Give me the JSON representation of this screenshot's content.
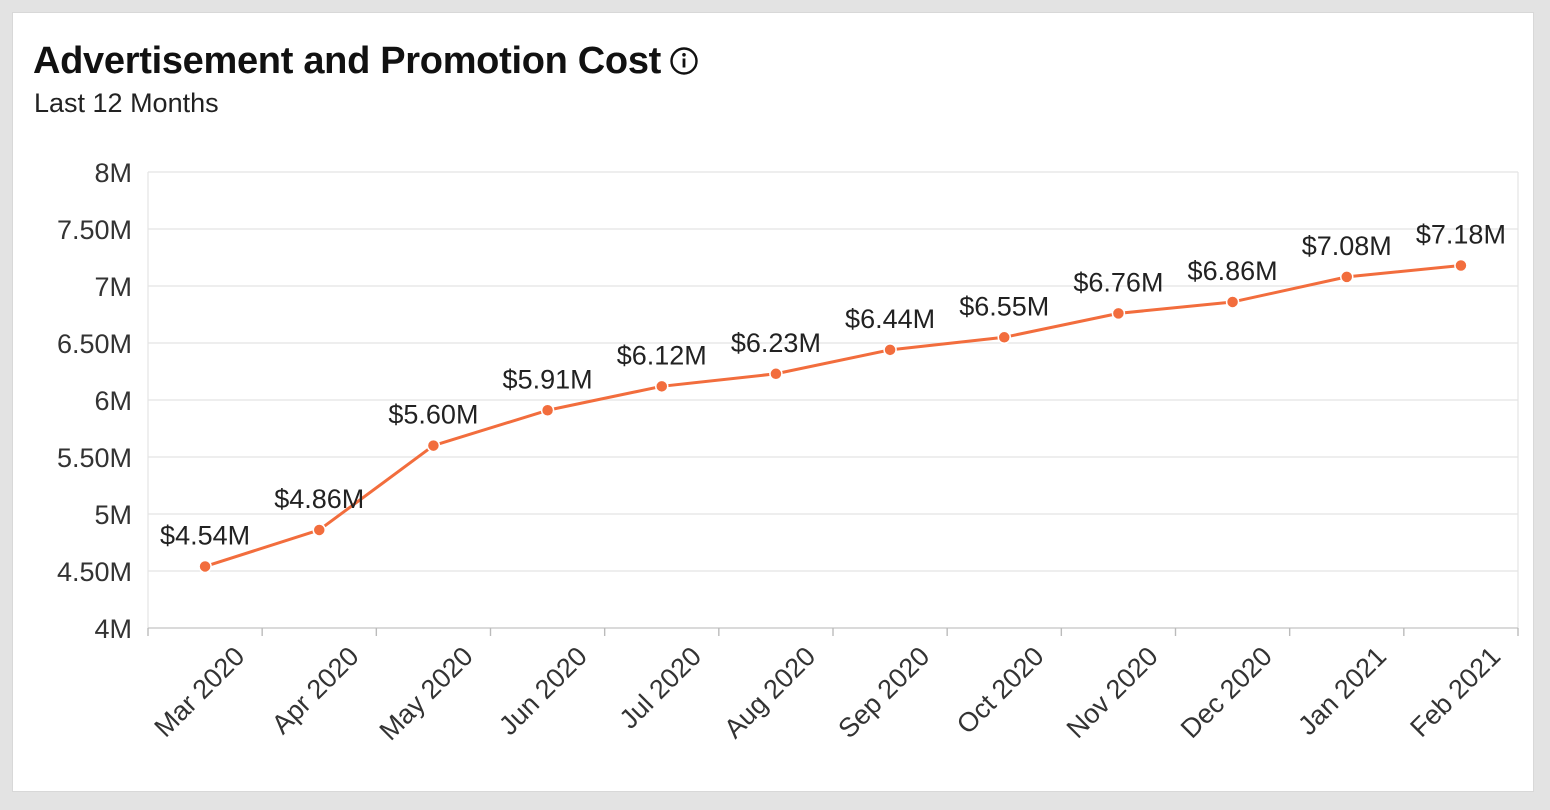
{
  "header": {
    "title": "Advertisement and Promotion Cost",
    "info_icon": "info-circle-icon",
    "subtitle": "Last 12 Months"
  },
  "colors": {
    "series": "#f26d3d",
    "grid": "#e4e4e4",
    "axis_text": "#333333"
  },
  "chart_data": {
    "type": "line",
    "categories": [
      "Mar 2020",
      "Apr 2020",
      "May 2020",
      "Jun 2020",
      "Jul 2020",
      "Aug 2020",
      "Sep 2020",
      "Oct 2020",
      "Nov 2020",
      "Dec 2020",
      "Jan 2021",
      "Feb 2021"
    ],
    "series": [
      {
        "values": [
          4.54,
          4.86,
          5.6,
          5.91,
          6.12,
          6.23,
          6.44,
          6.55,
          6.76,
          6.86,
          7.08,
          7.18
        ],
        "labels": [
          "$4.54M",
          "$4.86M",
          "$5.60M",
          "$5.91M",
          "$6.12M",
          "$6.23M",
          "$6.44M",
          "$6.55M",
          "$6.76M",
          "$6.86M",
          "$7.08M",
          "$7.18M"
        ]
      }
    ],
    "yticks": [
      4,
      4.5,
      5,
      5.5,
      6,
      6.5,
      7,
      7.5,
      8
    ],
    "ytick_labels": [
      "4M",
      "4.50M",
      "5M",
      "5.50M",
      "6M",
      "6.50M",
      "7M",
      "7.50M",
      "8M"
    ],
    "ylim": [
      4,
      8
    ],
    "grid": true,
    "legend": "none"
  }
}
